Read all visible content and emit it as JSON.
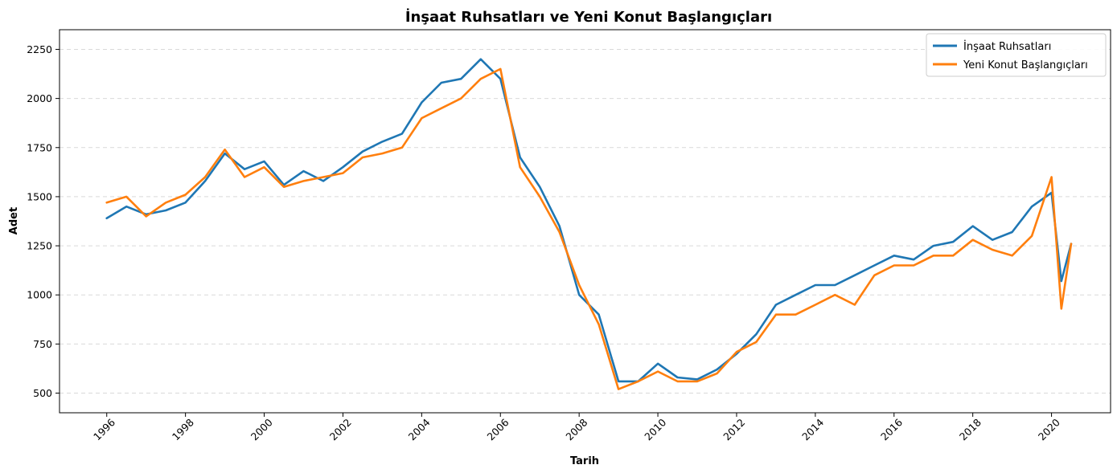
{
  "chart_data": {
    "type": "line",
    "title": "İnşaat Ruhsatları ve Yeni Konut Başlangıçları",
    "xlabel": "Tarih",
    "ylabel": "Adet",
    "x_ticks": [
      "1996",
      "1998",
      "2000",
      "2002",
      "2004",
      "2006",
      "2008",
      "2010",
      "2012",
      "2014",
      "2016",
      "2018",
      "2020"
    ],
    "y_ticks": [
      500,
      750,
      1000,
      1250,
      1500,
      1750,
      2000,
      2250
    ],
    "xlim": [
      1994.8,
      2021.5
    ],
    "ylim": [
      400,
      2350
    ],
    "grid": "y-dashed",
    "legend_position": "top-right",
    "series": [
      {
        "name": "İnşaat Ruhsatları",
        "color": "#1f77b4",
        "x": [
          1996.0,
          1996.5,
          1997.0,
          1997.5,
          1998.0,
          1998.5,
          1999.0,
          1999.5,
          2000.0,
          2000.5,
          2001.0,
          2001.5,
          2002.0,
          2002.5,
          2003.0,
          2003.5,
          2004.0,
          2004.5,
          2005.0,
          2005.5,
          2006.0,
          2006.5,
          2007.0,
          2007.5,
          2008.0,
          2008.5,
          2009.0,
          2009.5,
          2010.0,
          2010.5,
          2011.0,
          2011.5,
          2012.0,
          2012.5,
          2013.0,
          2013.5,
          2014.0,
          2014.5,
          2015.0,
          2015.5,
          2016.0,
          2016.5,
          2017.0,
          2017.5,
          2018.0,
          2018.5,
          2019.0,
          2019.5,
          2020.0,
          2020.25,
          2020.5
        ],
        "y": [
          1390,
          1450,
          1410,
          1430,
          1470,
          1580,
          1720,
          1640,
          1680,
          1560,
          1630,
          1580,
          1650,
          1730,
          1780,
          1820,
          1980,
          2080,
          2100,
          2200,
          2100,
          1700,
          1550,
          1350,
          1000,
          900,
          560,
          560,
          650,
          580,
          570,
          620,
          700,
          800,
          950,
          1000,
          1050,
          1050,
          1100,
          1150,
          1200,
          1180,
          1250,
          1270,
          1350,
          1280,
          1320,
          1450,
          1520,
          1070,
          1260
        ]
      },
      {
        "name": "Yeni Konut Başlangıçları",
        "color": "#ff7f0e",
        "x": [
          1996.0,
          1996.5,
          1997.0,
          1997.5,
          1998.0,
          1998.5,
          1999.0,
          1999.5,
          2000.0,
          2000.5,
          2001.0,
          2001.5,
          2002.0,
          2002.5,
          2003.0,
          2003.5,
          2004.0,
          2004.5,
          2005.0,
          2005.5,
          2006.0,
          2006.5,
          2007.0,
          2007.5,
          2008.0,
          2008.5,
          2009.0,
          2009.5,
          2010.0,
          2010.5,
          2011.0,
          2011.5,
          2012.0,
          2012.5,
          2013.0,
          2013.5,
          2014.0,
          2014.5,
          2015.0,
          2015.5,
          2016.0,
          2016.5,
          2017.0,
          2017.5,
          2018.0,
          2018.5,
          2019.0,
          2019.5,
          2020.0,
          2020.25,
          2020.5
        ],
        "y": [
          1470,
          1500,
          1400,
          1470,
          1510,
          1600,
          1740,
          1600,
          1650,
          1550,
          1580,
          1600,
          1620,
          1700,
          1720,
          1750,
          1900,
          1950,
          2000,
          2100,
          2150,
          1650,
          1500,
          1320,
          1050,
          850,
          520,
          560,
          610,
          560,
          560,
          600,
          710,
          760,
          900,
          900,
          950,
          1000,
          950,
          1100,
          1150,
          1150,
          1200,
          1200,
          1280,
          1230,
          1200,
          1300,
          1600,
          930,
          1260
        ]
      }
    ]
  }
}
